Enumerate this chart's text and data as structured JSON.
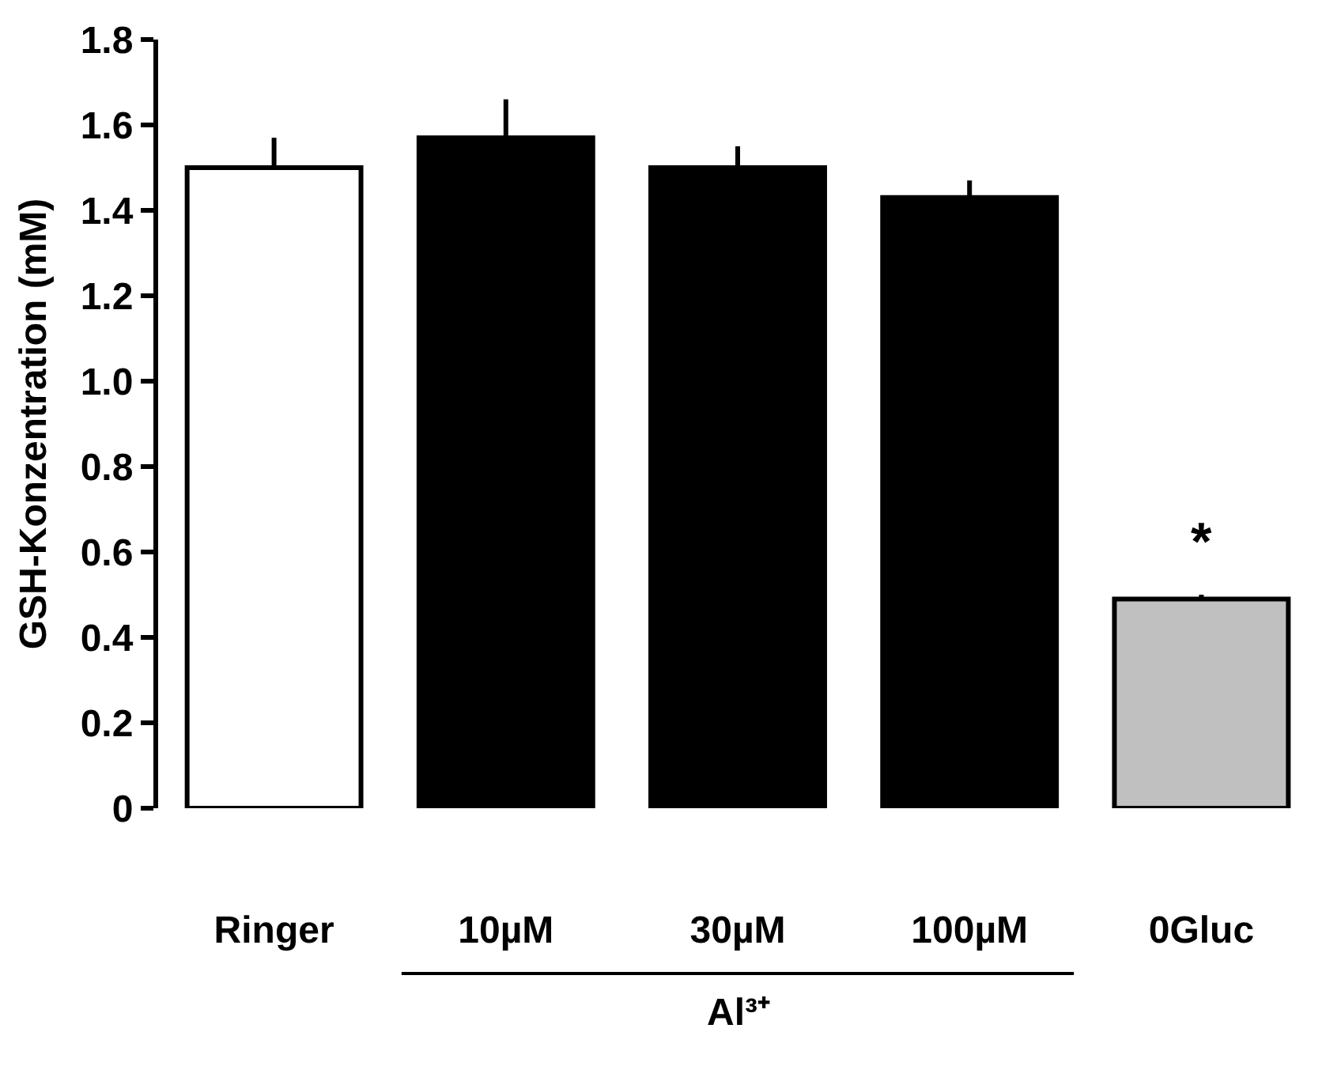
{
  "chart_data": {
    "type": "bar",
    "ylabel": "GSH-Konzentration (mM)",
    "categories": [
      "Ringer",
      "10µM",
      "30µM",
      "100µM",
      "0Gluc"
    ],
    "values": [
      1.5,
      1.57,
      1.5,
      1.43,
      0.49
    ],
    "colors": [
      "#ffffff",
      "#000000",
      "#000000",
      "#000000",
      "#c0c0c0"
    ],
    "errors": [
      [
        1.5,
        1.57
      ],
      [
        1.57,
        1.66
      ],
      [
        1.5,
        1.55
      ],
      [
        1.43,
        1.47
      ],
      [
        0.49,
        0.5
      ]
    ],
    "ylim": [
      0,
      1.8
    ],
    "yticks": [
      0,
      0.2,
      0.4,
      0.6,
      0.8,
      {
        "value": 1.0,
        "label": "1.0"
      },
      1.2,
      1.4,
      1.6,
      1.8
    ],
    "annotations": [
      "*",
      "Al³⁺"
    ]
  }
}
